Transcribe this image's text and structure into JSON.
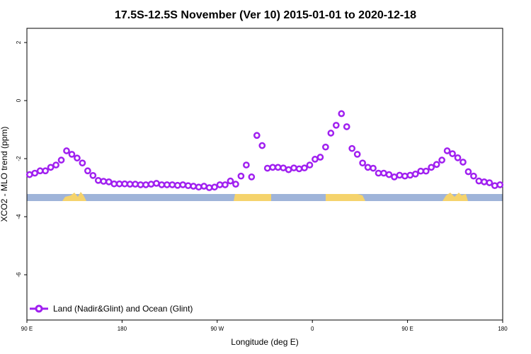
{
  "chart_data": {
    "type": "line",
    "title": "17.5S-12.5S November (Ver 10)   2015-01-01 to 2020-12-18",
    "x_label": "Longitude (deg E)",
    "y_label": "XCO2 - MLO trend (ppm)",
    "xlim": [
      90,
      540
    ],
    "ylim": [
      -7.56,
      2.49
    ],
    "xticks": [
      {
        "value": 90,
        "label": "90 E"
      },
      {
        "value": 180,
        "label": "180"
      },
      {
        "value": 270,
        "label": "90 W"
      },
      {
        "value": 360,
        "label": "0"
      },
      {
        "value": 450,
        "label": "90 E"
      },
      {
        "value": 540,
        "label": "180"
      }
    ],
    "yticks": [
      -6,
      -4,
      -2,
      0,
      2
    ],
    "legend": "bottom-left",
    "x": [
      92.5,
      97.5,
      102.5,
      107.5,
      112.5,
      117.5,
      122.5,
      127.5,
      132.5,
      137.5,
      142.5,
      147.5,
      152.5,
      157.5,
      162.5,
      167.5,
      172.5,
      177.5,
      182.5,
      187.5,
      192.5,
      197.5,
      202.5,
      207.5,
      212.5,
      217.5,
      222.5,
      227.5,
      232.5,
      237.5,
      242.5,
      247.5,
      252.5,
      257.5,
      262.5,
      267.5,
      272.5,
      277.5,
      282.5,
      287.5,
      292.5,
      297.5,
      302.5,
      307.5,
      312.5,
      317.5,
      322.5,
      327.5,
      332.5,
      337.5,
      342.5,
      347.5,
      352.5,
      357.5,
      362.5,
      367.5,
      372.5,
      377.5,
      382.5,
      387.5,
      392.5,
      397.5,
      402.5,
      407.5,
      412.5,
      417.5,
      422.5,
      427.5,
      432.5,
      437.5,
      442.5,
      447.5,
      452.5,
      457.5,
      462.5,
      467.5,
      472.5,
      477.5,
      482.5,
      487.5,
      492.5,
      497.5,
      502.5,
      507.5,
      512.5,
      517.5,
      522.5,
      527.5,
      532.5,
      537.5
    ],
    "series": [
      {
        "name": "Land (Nadir&Glint) and Ocean (Glint)",
        "color": "#a020f0",
        "values": [
          -2.55,
          -2.5,
          -2.42,
          -2.42,
          -2.3,
          -2.22,
          -2.05,
          -1.73,
          -1.85,
          -1.98,
          -2.15,
          -2.42,
          -2.58,
          -2.75,
          -2.78,
          -2.8,
          -2.87,
          -2.87,
          -2.87,
          -2.88,
          -2.88,
          -2.9,
          -2.9,
          -2.88,
          -2.85,
          -2.9,
          -2.9,
          -2.9,
          -2.92,
          -2.9,
          -2.93,
          -2.95,
          -2.98,
          -2.95,
          -3.0,
          -2.98,
          -2.9,
          -2.9,
          -2.77,
          -2.88,
          -2.6,
          -2.22,
          -2.63,
          -1.2,
          -1.55,
          -2.33,
          -2.3,
          -2.3,
          -2.32,
          -2.38,
          -2.32,
          -2.35,
          -2.32,
          -2.22,
          -2.02,
          -1.95,
          -1.6,
          -1.12,
          -0.85,
          -0.45,
          -0.9,
          -1.65,
          -1.85,
          -2.15,
          -2.3,
          -2.33,
          -2.5,
          -2.5,
          -2.55,
          -2.63,
          -2.57,
          -2.6,
          -2.57,
          -2.53,
          -2.43,
          -2.43,
          -2.3,
          -2.2,
          -2.05,
          -1.73,
          -1.83,
          -1.97,
          -2.12,
          -2.45,
          -2.6,
          -2.77,
          -2.8,
          -2.83,
          -2.93,
          -2.9
        ]
      }
    ]
  }
}
